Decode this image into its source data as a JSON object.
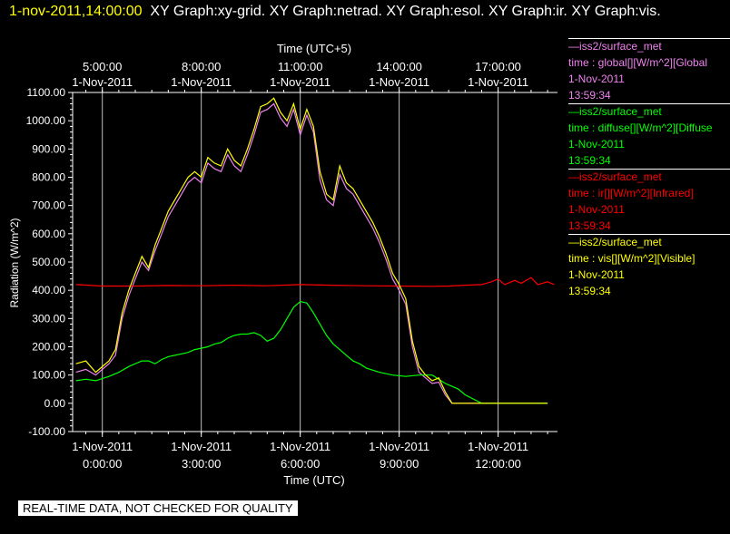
{
  "header": {
    "timestamp": "1-nov-2011,14:00:00",
    "graphs": "XY Graph:xy-grid.  XY Graph:netrad.  XY Graph:esol.  XY Graph:ir.  XY Graph:vis."
  },
  "footer": {
    "notice": "REAL-TIME DATA, NOT CHECKED FOR QUALITY"
  },
  "legend": [
    {
      "line1": "—iss2/surface_met",
      "line2": "time : global[][W/m^2][Global",
      "line3": "1-Nov-2011",
      "line4": "13:59:34",
      "color": "#ee82ee"
    },
    {
      "line1": "—iss2/surface_met",
      "line2": "time : diffuse[][W/m^2][Diffuse",
      "line3": "1-Nov-2011",
      "line4": "13:59:34",
      "color": "#00ff00"
    },
    {
      "line1": "—iss2/surface_met",
      "line2": "time : ir[][W/m^2][Infrared]",
      "line3": "1-Nov-2011",
      "line4": "13:59:34",
      "color": "#ff0000"
    },
    {
      "line1": "—iss2/surface_met",
      "line2": "time : vis[][W/m^2][Visible]",
      "line3": "1-Nov-2011",
      "line4": "13:59:34",
      "color": "#ffff00"
    }
  ],
  "chart_data": {
    "type": "line",
    "xlabel": "Time (UTC)",
    "x2label": "Time (UTC+5)",
    "ylabel": "Radiation (W/m^2)",
    "xlim": [
      -0.9,
      13.8
    ],
    "ylim": [
      -100,
      1100
    ],
    "yticks": [
      "1100.00",
      "1000.00",
      "900.00",
      "800.00",
      "700.00",
      "600.00",
      "500.00",
      "400.00",
      "300.00",
      "200.00",
      "100.00",
      "0.00",
      "-100.00"
    ],
    "ytick_values": [
      1100,
      1000,
      900,
      800,
      700,
      600,
      500,
      400,
      300,
      200,
      100,
      0,
      -100
    ],
    "xticks": [
      {
        "value": 0,
        "date": "1-Nov-2011",
        "time": "0:00:00"
      },
      {
        "value": 3,
        "date": "1-Nov-2011",
        "time": "3:00:00"
      },
      {
        "value": 6,
        "date": "1-Nov-2011",
        "time": "6:00:00"
      },
      {
        "value": 9,
        "date": "1-Nov-2011",
        "time": "9:00:00"
      },
      {
        "value": 12,
        "date": "1-Nov-2011",
        "time": "12:00:00"
      }
    ],
    "x2ticks": [
      {
        "value": 0,
        "time": "5:00:00",
        "date": "1-Nov-2011"
      },
      {
        "value": 3,
        "time": "8:00:00",
        "date": "1-Nov-2011"
      },
      {
        "value": 6,
        "time": "11:00:00",
        "date": "1-Nov-2011"
      },
      {
        "value": 9,
        "time": "14:00:00",
        "date": "1-Nov-2011"
      },
      {
        "value": 12,
        "time": "17:00:00",
        "date": "1-Nov-2011"
      }
    ],
    "series": [
      {
        "name": "global",
        "color": "#ee82ee",
        "x": [
          -0.8,
          -0.5,
          -0.2,
          0.2,
          0.4,
          0.6,
          0.8,
          1.0,
          1.2,
          1.4,
          1.6,
          1.8,
          2.0,
          2.2,
          2.4,
          2.6,
          2.8,
          3.0,
          3.2,
          3.4,
          3.6,
          3.8,
          4.0,
          4.2,
          4.4,
          4.6,
          4.8,
          5.0,
          5.2,
          5.4,
          5.6,
          5.8,
          6.0,
          6.2,
          6.4,
          6.6,
          6.8,
          7.0,
          7.2,
          7.4,
          7.6,
          7.8,
          8.0,
          8.2,
          8.4,
          8.6,
          8.8,
          9.0,
          9.2,
          9.4,
          9.6,
          9.8,
          10.0,
          10.2,
          10.4,
          10.6,
          10.8,
          11.0,
          11.5,
          12.0,
          12.5,
          13.0,
          13.5
        ],
        "y": [
          110,
          120,
          100,
          140,
          170,
          300,
          380,
          440,
          500,
          470,
          540,
          600,
          660,
          700,
          740,
          780,
          800,
          780,
          850,
          830,
          820,
          880,
          840,
          820,
          880,
          950,
          1030,
          1040,
          1060,
          1010,
          980,
          1040,
          950,
          1020,
          960,
          790,
          720,
          700,
          810,
          760,
          740,
          700,
          660,
          620,
          570,
          510,
          440,
          400,
          350,
          200,
          110,
          90,
          70,
          75,
          30,
          0,
          0,
          0,
          0,
          0,
          0,
          0,
          0
        ]
      },
      {
        "name": "diffuse",
        "color": "#00ff00",
        "x": [
          -0.8,
          -0.5,
          -0.2,
          0.2,
          0.5,
          0.8,
          1.0,
          1.2,
          1.4,
          1.6,
          1.8,
          2.0,
          2.2,
          2.4,
          2.6,
          2.8,
          3.0,
          3.2,
          3.4,
          3.6,
          3.8,
          4.0,
          4.2,
          4.4,
          4.6,
          4.8,
          5.0,
          5.2,
          5.4,
          5.6,
          5.8,
          6.0,
          6.2,
          6.4,
          6.6,
          6.8,
          7.0,
          7.2,
          7.4,
          7.6,
          7.8,
          8.0,
          8.4,
          8.8,
          9.2,
          9.6,
          10.0,
          10.2,
          10.4,
          10.6,
          10.8,
          11.0,
          11.5,
          12.0,
          12.5,
          13.0,
          13.5
        ],
        "y": [
          80,
          85,
          80,
          95,
          110,
          130,
          140,
          150,
          150,
          140,
          155,
          165,
          170,
          175,
          180,
          190,
          195,
          200,
          210,
          215,
          230,
          240,
          245,
          245,
          250,
          240,
          220,
          230,
          260,
          300,
          340,
          360,
          355,
          320,
          280,
          240,
          210,
          190,
          170,
          150,
          140,
          125,
          110,
          100,
          95,
          100,
          100,
          85,
          70,
          60,
          50,
          30,
          0,
          0,
          0,
          0,
          0
        ]
      },
      {
        "name": "ir",
        "color": "#ff0000",
        "x": [
          -0.8,
          0.0,
          1.0,
          2.0,
          3.0,
          4.0,
          5.0,
          6.0,
          7.0,
          8.0,
          9.0,
          10.0,
          10.5,
          11.0,
          11.5,
          11.8,
          12.0,
          12.2,
          12.5,
          12.7,
          13.0,
          13.2,
          13.5,
          13.7
        ],
        "y": [
          420,
          415,
          415,
          417,
          416,
          418,
          416,
          420,
          418,
          416,
          415,
          414,
          415,
          418,
          420,
          430,
          440,
          420,
          435,
          425,
          445,
          420,
          430,
          420
        ]
      },
      {
        "name": "vis",
        "color": "#ffff00",
        "x": [
          -0.8,
          -0.5,
          -0.2,
          0.2,
          0.4,
          0.6,
          0.8,
          1.0,
          1.2,
          1.4,
          1.6,
          1.8,
          2.0,
          2.2,
          2.4,
          2.6,
          2.8,
          3.0,
          3.2,
          3.4,
          3.6,
          3.8,
          4.0,
          4.2,
          4.4,
          4.6,
          4.8,
          5.0,
          5.2,
          5.4,
          5.6,
          5.8,
          6.0,
          6.2,
          6.4,
          6.6,
          6.8,
          7.0,
          7.2,
          7.4,
          7.6,
          7.8,
          8.0,
          8.2,
          8.4,
          8.6,
          8.8,
          9.0,
          9.2,
          9.4,
          9.6,
          9.8,
          10.0,
          10.2,
          10.4,
          10.6,
          10.8,
          11.0,
          11.5,
          12.0,
          12.5,
          13.0,
          13.5
        ],
        "y": [
          140,
          150,
          110,
          150,
          190,
          320,
          400,
          460,
          520,
          480,
          560,
          620,
          680,
          720,
          760,
          800,
          820,
          800,
          870,
          850,
          840,
          900,
          860,
          840,
          900,
          970,
          1050,
          1060,
          1080,
          1030,
          1000,
          1060,
          970,
          1040,
          980,
          820,
          740,
          720,
          840,
          780,
          760,
          720,
          680,
          640,
          590,
          530,
          460,
          420,
          370,
          220,
          130,
          100,
          80,
          90,
          40,
          0,
          0,
          0,
          0,
          0,
          0,
          0,
          0
        ]
      }
    ]
  }
}
